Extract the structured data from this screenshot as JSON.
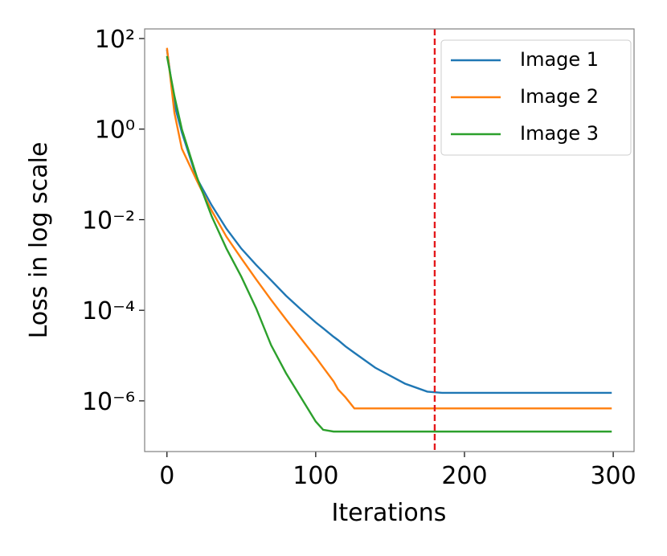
{
  "chart_data": {
    "type": "line",
    "xlabel": "Iterations",
    "ylabel": "Loss in log scale",
    "log_y": true,
    "x": [
      0,
      5,
      10,
      20,
      30,
      40,
      50,
      60,
      70,
      80,
      90,
      100,
      105,
      112,
      115,
      120,
      126,
      140,
      160,
      175,
      185,
      299
    ],
    "series": [
      {
        "name": "Image 1",
        "color": "#1f77b4",
        "values": [
          57,
          3.5,
          0.85,
          0.083,
          0.021,
          0.0063,
          0.0023,
          0.001,
          0.00046,
          0.00021,
          0.000105,
          5.4e-05,
          4e-05,
          2.6e-05,
          2.2e-05,
          1.6e-05,
          1.15e-05,
          5.4e-06,
          2.4e-06,
          1.6e-06,
          1.5e-06,
          1.5e-06
        ]
      },
      {
        "name": "Image 2",
        "color": "#ff7f0e",
        "values": [
          62,
          2.3,
          0.37,
          0.074,
          0.016,
          0.0042,
          0.0014,
          0.00048,
          0.00017,
          6.3e-05,
          2.4e-05,
          9.2e-06,
          5.5e-06,
          2.7e-06,
          1.8e-06,
          1.2e-06,
          6.8e-07,
          6.8e-07,
          6.8e-07,
          6.8e-07,
          6.8e-07,
          6.8e-07
        ]
      },
      {
        "name": "Image 3",
        "color": "#2ca02c",
        "values": [
          41,
          5.4,
          1.0,
          0.09,
          0.012,
          0.0023,
          0.00055,
          0.00011,
          1.7e-05,
          4.1e-06,
          1.2e-06,
          3.5e-07,
          2.3e-07,
          2.1e-07,
          2.1e-07,
          2.1e-07,
          2.1e-07,
          2.1e-07,
          2.1e-07,
          2.1e-07,
          2.1e-07,
          2.1e-07
        ]
      }
    ],
    "vline": {
      "x": 180,
      "color": "#e41a1c"
    },
    "xlim": [
      -15,
      314
    ],
    "ylim": [
      7.6e-08,
      163
    ],
    "xticks": [
      0,
      100,
      200,
      300
    ],
    "yticks": [
      {
        "value": 100,
        "label": "10²"
      },
      {
        "value": 1,
        "label": "10⁰"
      },
      {
        "value": 0.01,
        "label": "10⁻²"
      },
      {
        "value": 0.0001,
        "label": "10⁻⁴"
      },
      {
        "value": 1e-06,
        "label": "10⁻⁶"
      }
    ],
    "legend": "upper right"
  }
}
